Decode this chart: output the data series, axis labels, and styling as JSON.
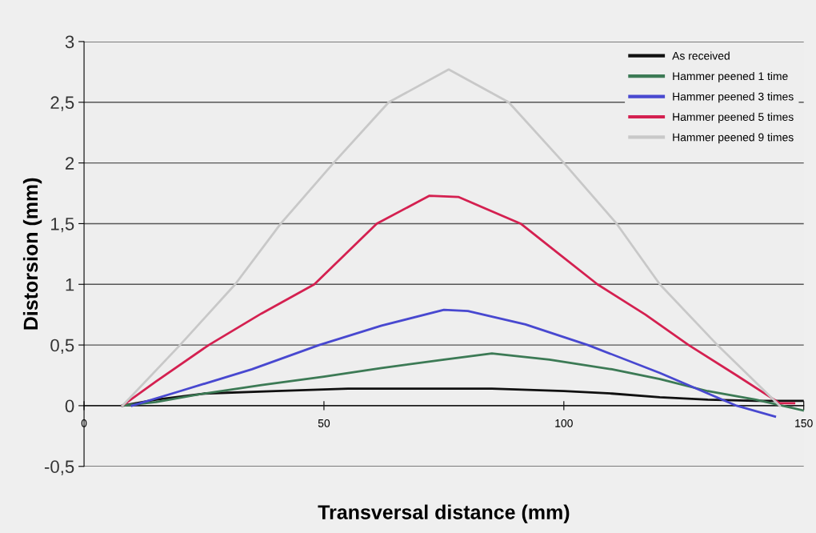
{
  "chart_data": {
    "type": "line",
    "xlabel": "Transversal distance (mm)",
    "ylabel": "Distorsion (mm)",
    "xlim": [
      0,
      150
    ],
    "xticks": [
      0,
      50,
      100,
      150
    ],
    "ylim": [
      -0.5,
      3
    ],
    "yticks": [
      {
        "value": -0.5,
        "label": "-0,5"
      },
      0,
      {
        "value": 0.5,
        "label": "0,5"
      },
      1,
      {
        "value": 1.5,
        "label": "1,5"
      },
      2,
      {
        "value": 2.5,
        "label": "2,5"
      },
      3
    ],
    "grid": "y",
    "legend": "top right",
    "marker": "none",
    "line_style": "solid",
    "series": [
      {
        "name": "As received",
        "color": "#101010",
        "x": [
          8,
          15,
          25,
          40,
          55,
          70,
          85,
          100,
          110,
          120,
          130,
          140,
          150
        ],
        "values": [
          0,
          0.05,
          0.1,
          0.12,
          0.14,
          0.14,
          0.14,
          0.12,
          0.1,
          0.07,
          0.05,
          0.04,
          0.04
        ]
      },
      {
        "name": "Hammer peened 1 time",
        "color": "#3c7a55",
        "x": [
          8,
          15,
          25,
          37,
          50,
          62,
          75,
          85,
          97,
          110,
          120,
          130,
          140,
          150
        ],
        "values": [
          0,
          0.03,
          0.1,
          0.17,
          0.24,
          0.31,
          0.38,
          0.43,
          0.38,
          0.3,
          0.22,
          0.12,
          0.05,
          -0.04
        ]
      },
      {
        "name": "Hammer peened 3 times",
        "color": "#4848d0",
        "x": [
          10,
          20,
          35,
          49,
          62,
          75,
          80,
          92,
          105,
          120,
          136,
          144
        ],
        "values": [
          0,
          0.12,
          0.3,
          0.5,
          0.66,
          0.79,
          0.78,
          0.67,
          0.5,
          0.27,
          0,
          -0.09
        ]
      },
      {
        "name": "Hammer peened 5 times",
        "color": "#d42050",
        "x": [
          8,
          15,
          26,
          37,
          48,
          61,
          72,
          78,
          91,
          99,
          107,
          117,
          126,
          136,
          145,
          148
        ],
        "values": [
          0,
          0.2,
          0.5,
          0.76,
          1.0,
          1.5,
          1.73,
          1.72,
          1.5,
          1.25,
          1.0,
          0.75,
          0.5,
          0.25,
          0.02,
          0.02
        ]
      },
      {
        "name": "Hammer peened 9 times",
        "color": "#c8c8c8",
        "x": [
          8,
          20,
          31.5,
          41,
          52,
          63.5,
          76,
          88.5,
          100,
          111,
          120,
          132,
          145
        ],
        "values": [
          0,
          0.5,
          1.0,
          1.5,
          2.0,
          2.5,
          2.77,
          2.5,
          2.0,
          1.5,
          1.0,
          0.5,
          0
        ]
      }
    ]
  }
}
